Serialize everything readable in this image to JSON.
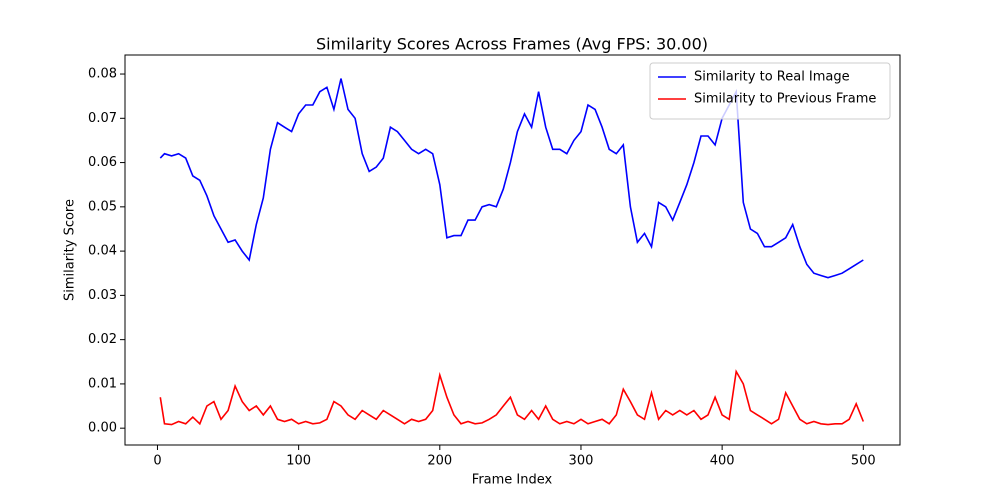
{
  "chart_data": {
    "type": "line",
    "title": "Similarity Scores Across Frames (Avg FPS: 30.00)",
    "x_label": "Frame Index",
    "y_label": "Similarity Score",
    "x": [
      2,
      5,
      10,
      15,
      20,
      25,
      30,
      35,
      40,
      45,
      50,
      55,
      60,
      65,
      70,
      75,
      80,
      85,
      90,
      95,
      100,
      105,
      110,
      115,
      120,
      125,
      130,
      135,
      140,
      145,
      150,
      155,
      160,
      165,
      170,
      175,
      180,
      185,
      190,
      195,
      200,
      205,
      210,
      215,
      220,
      225,
      230,
      235,
      240,
      245,
      250,
      255,
      260,
      265,
      270,
      275,
      280,
      285,
      290,
      295,
      300,
      305,
      310,
      315,
      320,
      325,
      330,
      335,
      340,
      345,
      350,
      355,
      360,
      365,
      370,
      375,
      380,
      385,
      390,
      395,
      400,
      405,
      410,
      415,
      420,
      425,
      430,
      435,
      440,
      445,
      450,
      455,
      460,
      465,
      470,
      475,
      480,
      485,
      490,
      495,
      500
    ],
    "series": [
      {
        "name": "Similarity to Real Image",
        "color": "#0000ff",
        "values": [
          0.061,
          0.062,
          0.0615,
          0.062,
          0.061,
          0.057,
          0.056,
          0.0525,
          0.048,
          0.045,
          0.042,
          0.0425,
          0.04,
          0.038,
          0.046,
          0.052,
          0.063,
          0.069,
          0.068,
          0.067,
          0.071,
          0.073,
          0.073,
          0.076,
          0.077,
          0.072,
          0.079,
          0.072,
          0.07,
          0.062,
          0.058,
          0.059,
          0.061,
          0.068,
          0.067,
          0.065,
          0.063,
          0.062,
          0.063,
          0.062,
          0.055,
          0.043,
          0.0435,
          0.0435,
          0.047,
          0.047,
          0.05,
          0.0505,
          0.05,
          0.054,
          0.06,
          0.067,
          0.071,
          0.068,
          0.076,
          0.068,
          0.063,
          0.063,
          0.062,
          0.065,
          0.067,
          0.073,
          0.072,
          0.068,
          0.063,
          0.062,
          0.064,
          0.05,
          0.042,
          0.044,
          0.041,
          0.051,
          0.05,
          0.047,
          0.051,
          0.055,
          0.06,
          0.066,
          0.066,
          0.064,
          0.07,
          0.073,
          0.076,
          0.051,
          0.045,
          0.044,
          0.041,
          0.041,
          0.042,
          0.043,
          0.046,
          0.041,
          0.037,
          0.035,
          0.0345,
          0.034,
          0.0345,
          0.035,
          0.036,
          0.037,
          0.038
        ]
      },
      {
        "name": "Similarity to Previous Frame",
        "color": "#ff0000",
        "values": [
          0.007,
          0.001,
          0.0008,
          0.0015,
          0.001,
          0.0025,
          0.001,
          0.005,
          0.006,
          0.002,
          0.004,
          0.0095,
          0.006,
          0.004,
          0.005,
          0.003,
          0.005,
          0.002,
          0.0015,
          0.002,
          0.001,
          0.0015,
          0.001,
          0.0012,
          0.002,
          0.006,
          0.005,
          0.003,
          0.002,
          0.004,
          0.003,
          0.002,
          0.004,
          0.003,
          0.002,
          0.001,
          0.002,
          0.0015,
          0.002,
          0.004,
          0.012,
          0.007,
          0.003,
          0.001,
          0.0015,
          0.001,
          0.0012,
          0.002,
          0.003,
          0.005,
          0.007,
          0.003,
          0.002,
          0.004,
          0.002,
          0.005,
          0.002,
          0.001,
          0.0015,
          0.001,
          0.002,
          0.001,
          0.0015,
          0.002,
          0.001,
          0.003,
          0.0088,
          0.006,
          0.003,
          0.002,
          0.008,
          0.002,
          0.004,
          0.003,
          0.004,
          0.003,
          0.004,
          0.002,
          0.003,
          0.007,
          0.003,
          0.002,
          0.0128,
          0.01,
          0.004,
          0.003,
          0.002,
          0.001,
          0.002,
          0.008,
          0.005,
          0.002,
          0.001,
          0.0015,
          0.001,
          0.0008,
          0.001,
          0.001,
          0.002,
          0.0055,
          0.0015
        ]
      }
    ],
    "xlim": [
      -23,
      526
    ],
    "xticks": [
      0,
      100,
      200,
      300,
      400,
      500
    ],
    "ylim": [
      -0.0038,
      0.0843
    ],
    "yticks": [
      {
        "value": 0,
        "label": "0.00"
      },
      0.01,
      0.02,
      0.03,
      0.04,
      0.05,
      0.06,
      0.07,
      0.08
    ],
    "legend": "upper right"
  }
}
